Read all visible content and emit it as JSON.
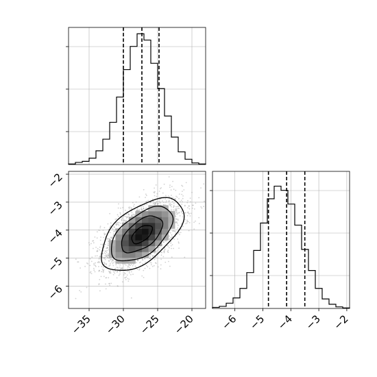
{
  "chart_data": {
    "type": "corner",
    "parameters": [
      {
        "axis_range": [
          -38,
          -18
        ],
        "ticks": [
          -35,
          -30,
          -25,
          -20
        ],
        "tick_labels": [
          "−35",
          "−30",
          "−25",
          "−20"
        ],
        "quantiles": [
          -30.0,
          -27.3,
          -24.8
        ],
        "hist_bins": [
          -38,
          -37,
          -36,
          -35,
          -34,
          -33,
          -32,
          -31,
          -30,
          -29,
          -28,
          -27,
          -26,
          -25,
          -24,
          -23,
          -22,
          -21,
          -20,
          -19,
          -18
        ],
        "hist_counts": [
          0.5,
          2,
          3,
          6,
          13,
          24,
          40,
          64,
          90,
          112,
          124,
          118,
          96,
          72,
          46,
          26,
          12,
          5,
          1.5,
          0.5
        ]
      },
      {
        "axis_range": [
          -6.8,
          -1.9
        ],
        "ticks": [
          -6,
          -5,
          -4,
          -3,
          -2
        ],
        "tick_labels": [
          "−6",
          "−5",
          "−4",
          "−3",
          "−2"
        ],
        "quantiles": [
          -4.8,
          -4.15,
          -3.5
        ],
        "hist_bins": [
          -6.8,
          -6.555,
          -6.31,
          -6.065,
          -5.82,
          -5.575,
          -5.33,
          -5.085,
          -4.84,
          -4.595,
          -4.35,
          -4.105,
          -3.86,
          -3.615,
          -3.37,
          -3.125,
          -2.88,
          -2.635,
          -2.39,
          -2.145,
          -1.9
        ],
        "hist_counts": [
          1,
          2,
          5,
          10,
          19,
          34,
          55,
          81,
          104,
          116,
          112,
          99,
          79,
          56,
          36,
          19,
          9,
          4,
          1.5,
          0.5
        ]
      }
    ],
    "joint": {
      "mean": [
        -27.3,
        -4.15
      ],
      "std": [
        3.0,
        0.65
      ],
      "correlation": 0.55,
      "contour_levels_sigma": [
        0.5,
        1,
        1.5,
        2
      ]
    },
    "hist_ymax": 130,
    "grid": true
  }
}
